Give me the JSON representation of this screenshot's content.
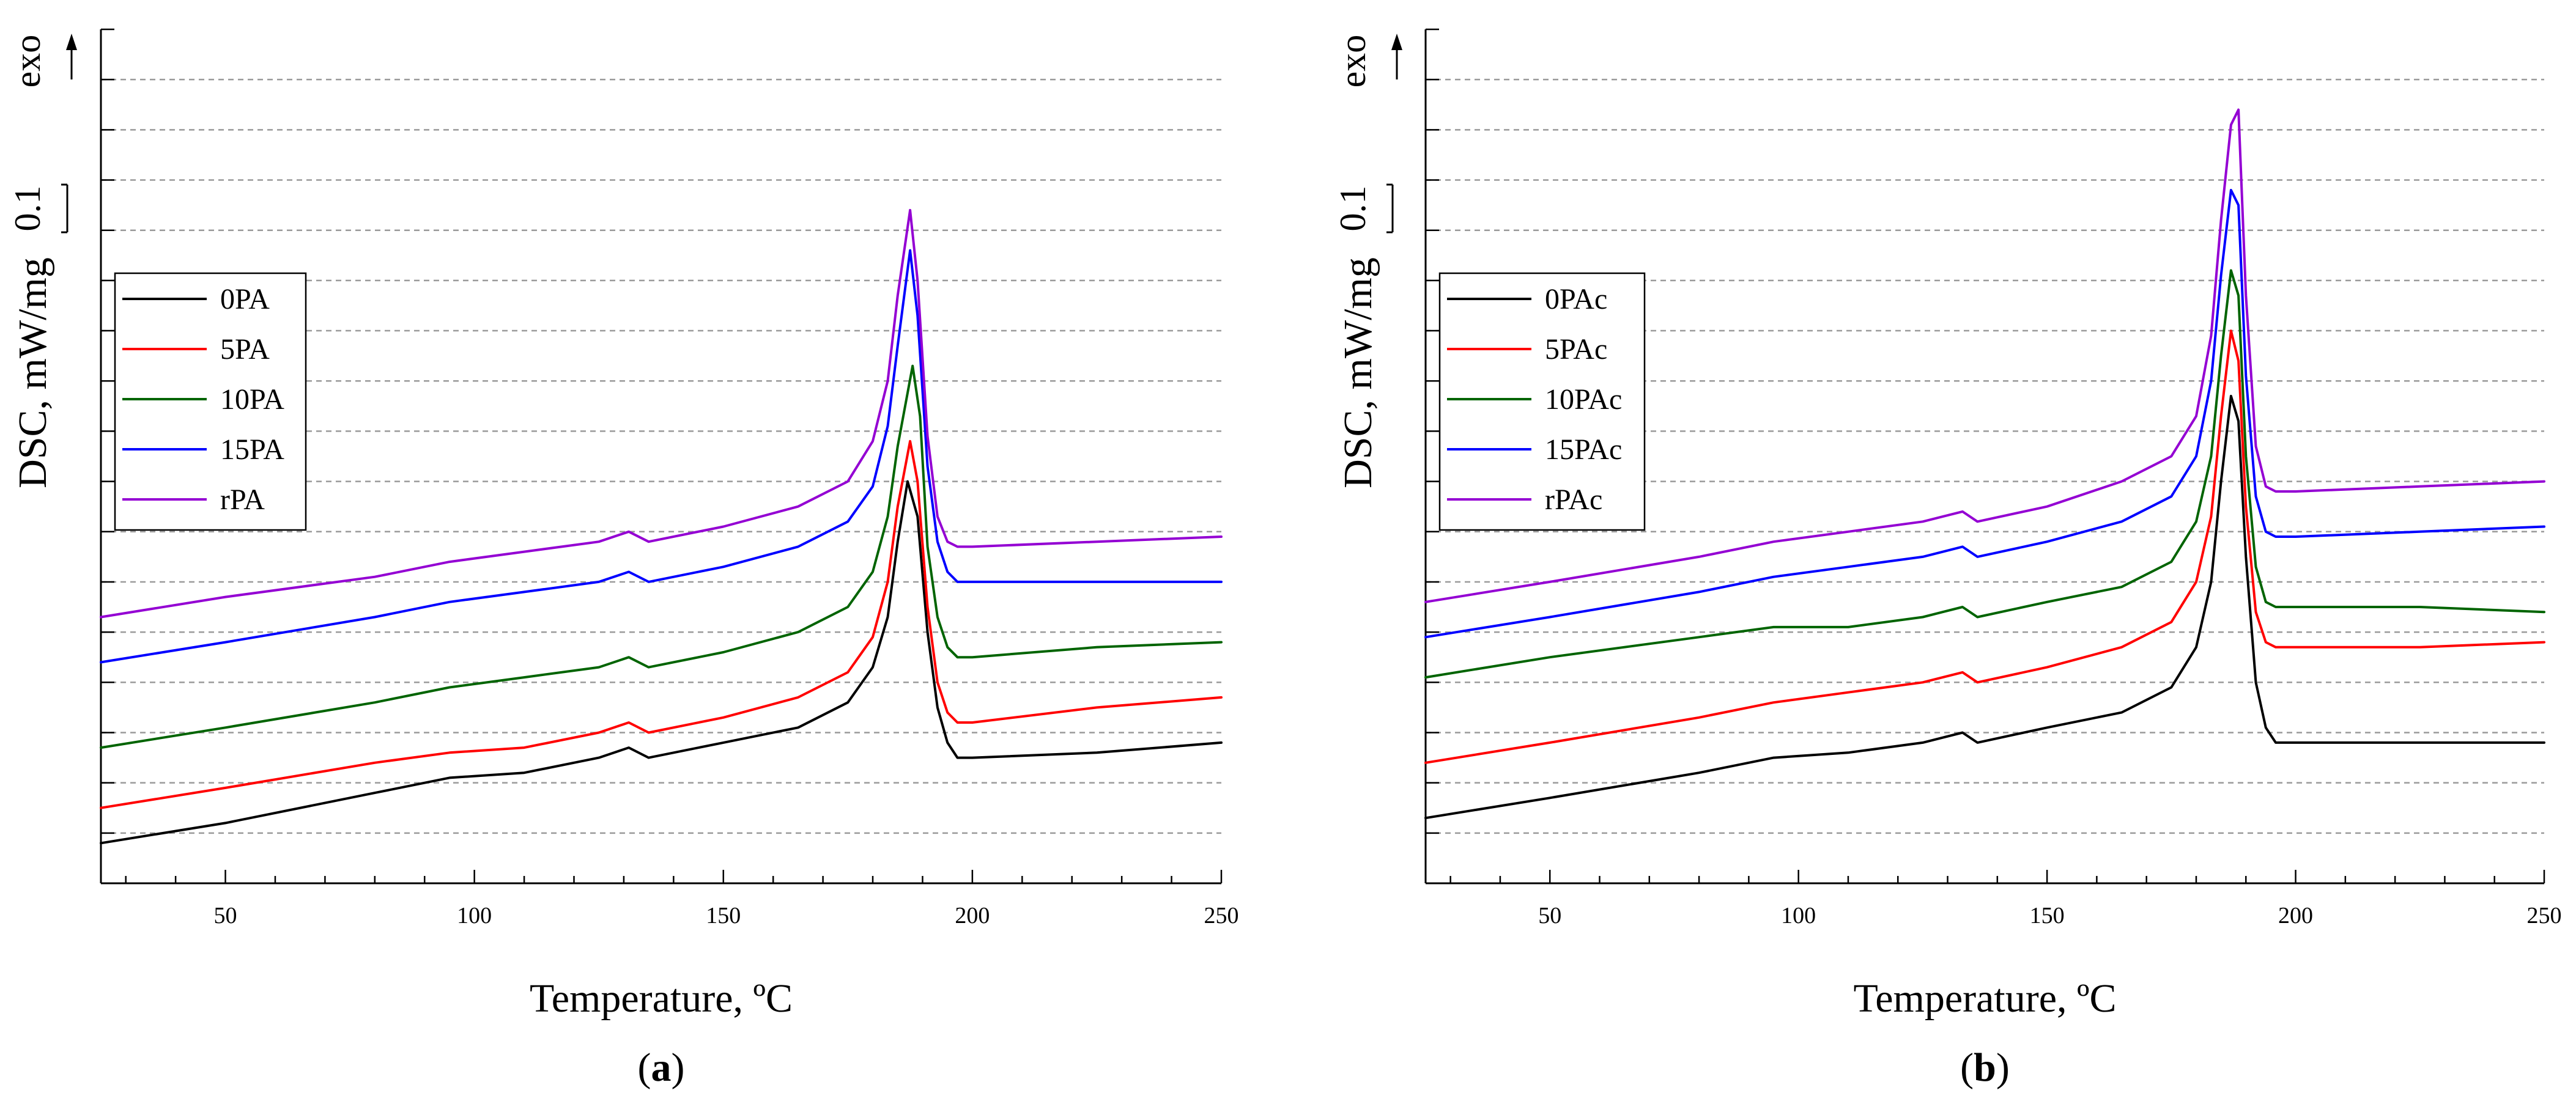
{
  "chart_data": [
    {
      "type": "line",
      "panel_label": "a",
      "xlabel": "Temperature, ºC",
      "ylabel": "DSC, mW/mg",
      "xlim": [
        25,
        250
      ],
      "ylim": [
        -0.55,
        1.15
      ],
      "xticks": [
        50,
        100,
        150,
        200,
        250
      ],
      "exo_label": "exo",
      "scale_bar": {
        "label": "0.1",
        "value": 0.1
      },
      "gridlines": "horizontal-dashed",
      "legend_position": "left",
      "series": [
        {
          "name": "0PA",
          "color": "#000000",
          "x": [
            25,
            50,
            80,
            95,
            110,
            125,
            131,
            135,
            150,
            165,
            175,
            180,
            183,
            185,
            187,
            189,
            191,
            193,
            195,
            197,
            200,
            225,
            250
          ],
          "y": [
            -0.47,
            -0.43,
            -0.37,
            -0.34,
            -0.33,
            -0.3,
            -0.28,
            -0.3,
            -0.27,
            -0.24,
            -0.19,
            -0.12,
            -0.02,
            0.13,
            0.25,
            0.18,
            -0.05,
            -0.2,
            -0.27,
            -0.3,
            -0.3,
            -0.29,
            -0.27
          ]
        },
        {
          "name": "5PA",
          "color": "#ff0000",
          "x": [
            25,
            50,
            80,
            95,
            110,
            125,
            131,
            135,
            150,
            165,
            175,
            180,
            183,
            185,
            187.5,
            189,
            191,
            193,
            195,
            197,
            200,
            225,
            250
          ],
          "y": [
            -0.4,
            -0.36,
            -0.31,
            -0.29,
            -0.28,
            -0.25,
            -0.23,
            -0.25,
            -0.22,
            -0.18,
            -0.13,
            -0.06,
            0.05,
            0.2,
            0.33,
            0.25,
            0.0,
            -0.15,
            -0.21,
            -0.23,
            -0.23,
            -0.2,
            -0.18
          ]
        },
        {
          "name": "10PA",
          "color": "#006400",
          "x": [
            25,
            50,
            80,
            95,
            110,
            125,
            131,
            135,
            150,
            165,
            175,
            180,
            183,
            185,
            188,
            189.5,
            191,
            193,
            195,
            197,
            200,
            225,
            250
          ],
          "y": [
            -0.28,
            -0.24,
            -0.19,
            -0.16,
            -0.14,
            -0.12,
            -0.1,
            -0.12,
            -0.09,
            -0.05,
            0.0,
            0.07,
            0.18,
            0.32,
            0.48,
            0.38,
            0.12,
            -0.02,
            -0.08,
            -0.1,
            -0.1,
            -0.08,
            -0.07
          ]
        },
        {
          "name": "15PA",
          "color": "#0000ff",
          "x": [
            25,
            50,
            80,
            95,
            110,
            125,
            131,
            135,
            150,
            165,
            175,
            180,
            183,
            185,
            187.5,
            189,
            191,
            193,
            195,
            197,
            200,
            225,
            250
          ],
          "y": [
            -0.11,
            -0.07,
            -0.02,
            0.01,
            0.03,
            0.05,
            0.07,
            0.05,
            0.08,
            0.12,
            0.17,
            0.24,
            0.36,
            0.52,
            0.71,
            0.58,
            0.28,
            0.13,
            0.07,
            0.05,
            0.05,
            0.05,
            0.05
          ]
        },
        {
          "name": "rPA",
          "color": "#9400d3",
          "x": [
            25,
            50,
            80,
            95,
            110,
            125,
            131,
            135,
            150,
            165,
            175,
            180,
            183,
            185,
            187.5,
            189,
            191,
            193,
            195,
            197,
            200,
            225,
            250
          ],
          "y": [
            -0.02,
            0.02,
            0.06,
            0.09,
            0.11,
            0.13,
            0.15,
            0.13,
            0.16,
            0.2,
            0.25,
            0.33,
            0.45,
            0.62,
            0.79,
            0.65,
            0.34,
            0.18,
            0.13,
            0.12,
            0.12,
            0.13,
            0.14
          ]
        }
      ]
    },
    {
      "type": "line",
      "panel_label": "b",
      "xlabel": "Temperature, ºC",
      "ylabel": "DSC, mW/mg",
      "xlim": [
        25,
        250
      ],
      "ylim": [
        -0.55,
        1.15
      ],
      "xticks": [
        50,
        100,
        150,
        200,
        250
      ],
      "exo_label": "exo",
      "scale_bar": {
        "label": "0.1",
        "value": 0.1
      },
      "gridlines": "horizontal-dashed",
      "legend_position": "left",
      "series": [
        {
          "name": "0PAc",
          "color": "#000000",
          "x": [
            25,
            50,
            80,
            95,
            110,
            125,
            133,
            136,
            150,
            165,
            175,
            180,
            183,
            185,
            187,
            188.5,
            190,
            192,
            194,
            196,
            200,
            225,
            250
          ],
          "y": [
            -0.42,
            -0.38,
            -0.33,
            -0.3,
            -0.29,
            -0.27,
            -0.25,
            -0.27,
            -0.24,
            -0.21,
            -0.16,
            -0.08,
            0.05,
            0.25,
            0.42,
            0.37,
            0.1,
            -0.15,
            -0.24,
            -0.27,
            -0.27,
            -0.27,
            -0.27
          ]
        },
        {
          "name": "5PAc",
          "color": "#ff0000",
          "x": [
            25,
            50,
            80,
            95,
            110,
            125,
            133,
            136,
            150,
            165,
            175,
            180,
            183,
            185,
            187,
            188.5,
            190,
            192,
            194,
            196,
            200,
            225,
            250
          ],
          "y": [
            -0.31,
            -0.27,
            -0.22,
            -0.19,
            -0.17,
            -0.15,
            -0.13,
            -0.15,
            -0.12,
            -0.08,
            -0.03,
            0.05,
            0.18,
            0.38,
            0.55,
            0.49,
            0.2,
            -0.01,
            -0.07,
            -0.08,
            -0.08,
            -0.08,
            -0.07
          ]
        },
        {
          "name": "10PAc",
          "color": "#006400",
          "x": [
            25,
            50,
            80,
            95,
            110,
            125,
            133,
            136,
            150,
            165,
            175,
            180,
            183,
            185,
            187,
            188.5,
            190,
            192,
            194,
            196,
            200,
            225,
            250
          ],
          "y": [
            -0.14,
            -0.1,
            -0.06,
            -0.04,
            -0.04,
            -0.02,
            0.0,
            -0.02,
            0.01,
            0.04,
            0.09,
            0.17,
            0.3,
            0.5,
            0.67,
            0.62,
            0.3,
            0.08,
            0.01,
            0.0,
            0.0,
            0.0,
            -0.01
          ]
        },
        {
          "name": "15PAc",
          "color": "#0000ff",
          "x": [
            25,
            50,
            80,
            95,
            110,
            125,
            133,
            136,
            150,
            165,
            175,
            180,
            183,
            185,
            187,
            188.5,
            190,
            192,
            194,
            196,
            200,
            225,
            250
          ],
          "y": [
            -0.06,
            -0.02,
            0.03,
            0.06,
            0.08,
            0.1,
            0.12,
            0.1,
            0.13,
            0.17,
            0.22,
            0.3,
            0.45,
            0.66,
            0.83,
            0.8,
            0.46,
            0.22,
            0.15,
            0.14,
            0.14,
            0.15,
            0.16
          ]
        },
        {
          "name": "rPAc",
          "color": "#9400d3",
          "x": [
            25,
            50,
            80,
            95,
            110,
            125,
            133,
            136,
            150,
            165,
            175,
            180,
            183,
            185,
            187,
            188.5,
            190,
            192,
            194,
            196,
            200,
            225,
            250
          ],
          "y": [
            0.01,
            0.05,
            0.1,
            0.13,
            0.15,
            0.17,
            0.19,
            0.17,
            0.2,
            0.25,
            0.3,
            0.38,
            0.54,
            0.77,
            0.96,
            0.99,
            0.62,
            0.32,
            0.24,
            0.23,
            0.23,
            0.24,
            0.25
          ]
        }
      ]
    }
  ]
}
